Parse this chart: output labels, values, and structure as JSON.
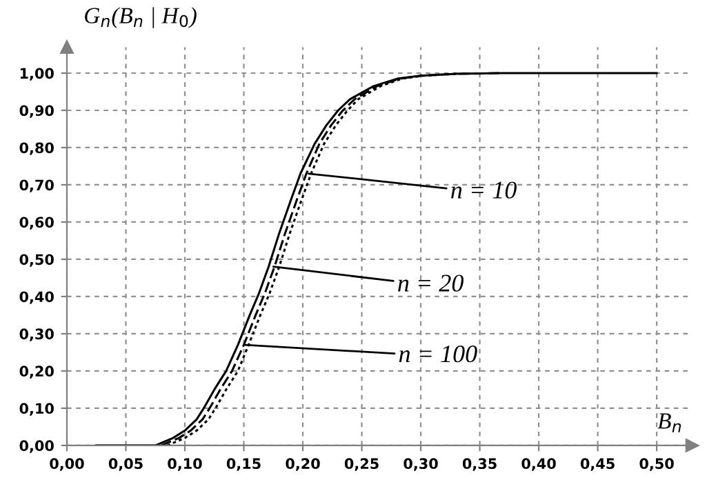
{
  "chart_data": {
    "type": "line",
    "ylabel": "G$_{n}$(B$_{n}$ | H$_{0}$)",
    "xlabel": "B$_{n}$",
    "xlim": [
      0,
      0.53
    ],
    "ylim": [
      0,
      1.07
    ],
    "xticks": [
      {
        "value": 0,
        "label": "0,00"
      },
      {
        "value": 0.05,
        "label": "0,05"
      },
      {
        "value": 0.1,
        "label": "0,10"
      },
      {
        "value": 0.15,
        "label": "0,15"
      },
      {
        "value": 0.2,
        "label": "0,20"
      },
      {
        "value": 0.25,
        "label": "0,25"
      },
      {
        "value": 0.3,
        "label": "0,30"
      },
      {
        "value": 0.35,
        "label": "0,35"
      },
      {
        "value": 0.4,
        "label": "0,40"
      },
      {
        "value": 0.45,
        "label": "0,45"
      },
      {
        "value": 0.5,
        "label": "0,50"
      }
    ],
    "yticks": [
      {
        "value": 0,
        "label": "0,00"
      },
      {
        "value": 0.1,
        "label": "0,10"
      },
      {
        "value": 0.2,
        "label": "0,20"
      },
      {
        "value": 0.3,
        "label": "0,30"
      },
      {
        "value": 0.4,
        "label": "0,40"
      },
      {
        "value": 0.5,
        "label": "0,50"
      },
      {
        "value": 0.6,
        "label": "0,60"
      },
      {
        "value": 0.7,
        "label": "0,70"
      },
      {
        "value": 0.8,
        "label": "0,80"
      },
      {
        "value": 0.9,
        "label": "0,90"
      },
      {
        "value": 1.0,
        "label": "1,00"
      }
    ],
    "grid": true,
    "series": [
      {
        "color": "#000000",
        "line_style": "solid",
        "x": [
          0.025,
          0.075,
          0.09,
          0.1,
          0.11,
          0.116,
          0.125,
          0.135,
          0.145,
          0.155,
          0.163,
          0.171,
          0.18,
          0.19,
          0.198,
          0.21,
          0.22,
          0.23,
          0.24,
          0.26,
          0.28,
          0.3,
          0.33,
          0.37,
          0.5
        ],
        "values": [
          0,
          0,
          0.02,
          0.04,
          0.07,
          0.1,
          0.15,
          0.2,
          0.27,
          0.35,
          0.41,
          0.48,
          0.57,
          0.66,
          0.73,
          0.81,
          0.86,
          0.9,
          0.93,
          0.965,
          0.985,
          0.993,
          0.998,
          1.0,
          1.0
        ]
      },
      {
        "color": "#000000",
        "line_style": "dashed",
        "x": [
          0.08,
          0.095,
          0.105,
          0.115,
          0.121,
          0.13,
          0.14,
          0.15,
          0.16,
          0.168,
          0.176,
          0.185,
          0.195,
          0.203,
          0.214,
          0.224,
          0.234,
          0.244,
          0.263,
          0.282,
          0.3,
          0.33,
          0.37
        ],
        "values": [
          0,
          0.02,
          0.04,
          0.07,
          0.1,
          0.15,
          0.2,
          0.27,
          0.35,
          0.41,
          0.48,
          0.57,
          0.66,
          0.73,
          0.81,
          0.86,
          0.9,
          0.93,
          0.965,
          0.985,
          0.993,
          0.998,
          1.0
        ]
      },
      {
        "color": "#000000",
        "line_style": "dotted",
        "x": [
          0.085,
          0.1,
          0.11,
          0.12,
          0.126,
          0.135,
          0.145,
          0.154,
          0.164,
          0.172,
          0.18,
          0.189,
          0.199,
          0.207,
          0.218,
          0.228,
          0.238,
          0.247,
          0.266,
          0.284,
          0.302,
          0.33
        ],
        "values": [
          0,
          0.02,
          0.04,
          0.07,
          0.1,
          0.15,
          0.2,
          0.27,
          0.35,
          0.41,
          0.48,
          0.57,
          0.66,
          0.73,
          0.81,
          0.86,
          0.9,
          0.93,
          0.965,
          0.985,
          0.993,
          0.998
        ]
      }
    ],
    "annotations": [
      {
        "text": "n = 10",
        "x": 0.205,
        "y": 0.73
      },
      {
        "text": "n = 20",
        "x": 0.175,
        "y": 0.48
      },
      {
        "text": "n = 100",
        "x": 0.151,
        "y": 0.27
      }
    ]
  }
}
